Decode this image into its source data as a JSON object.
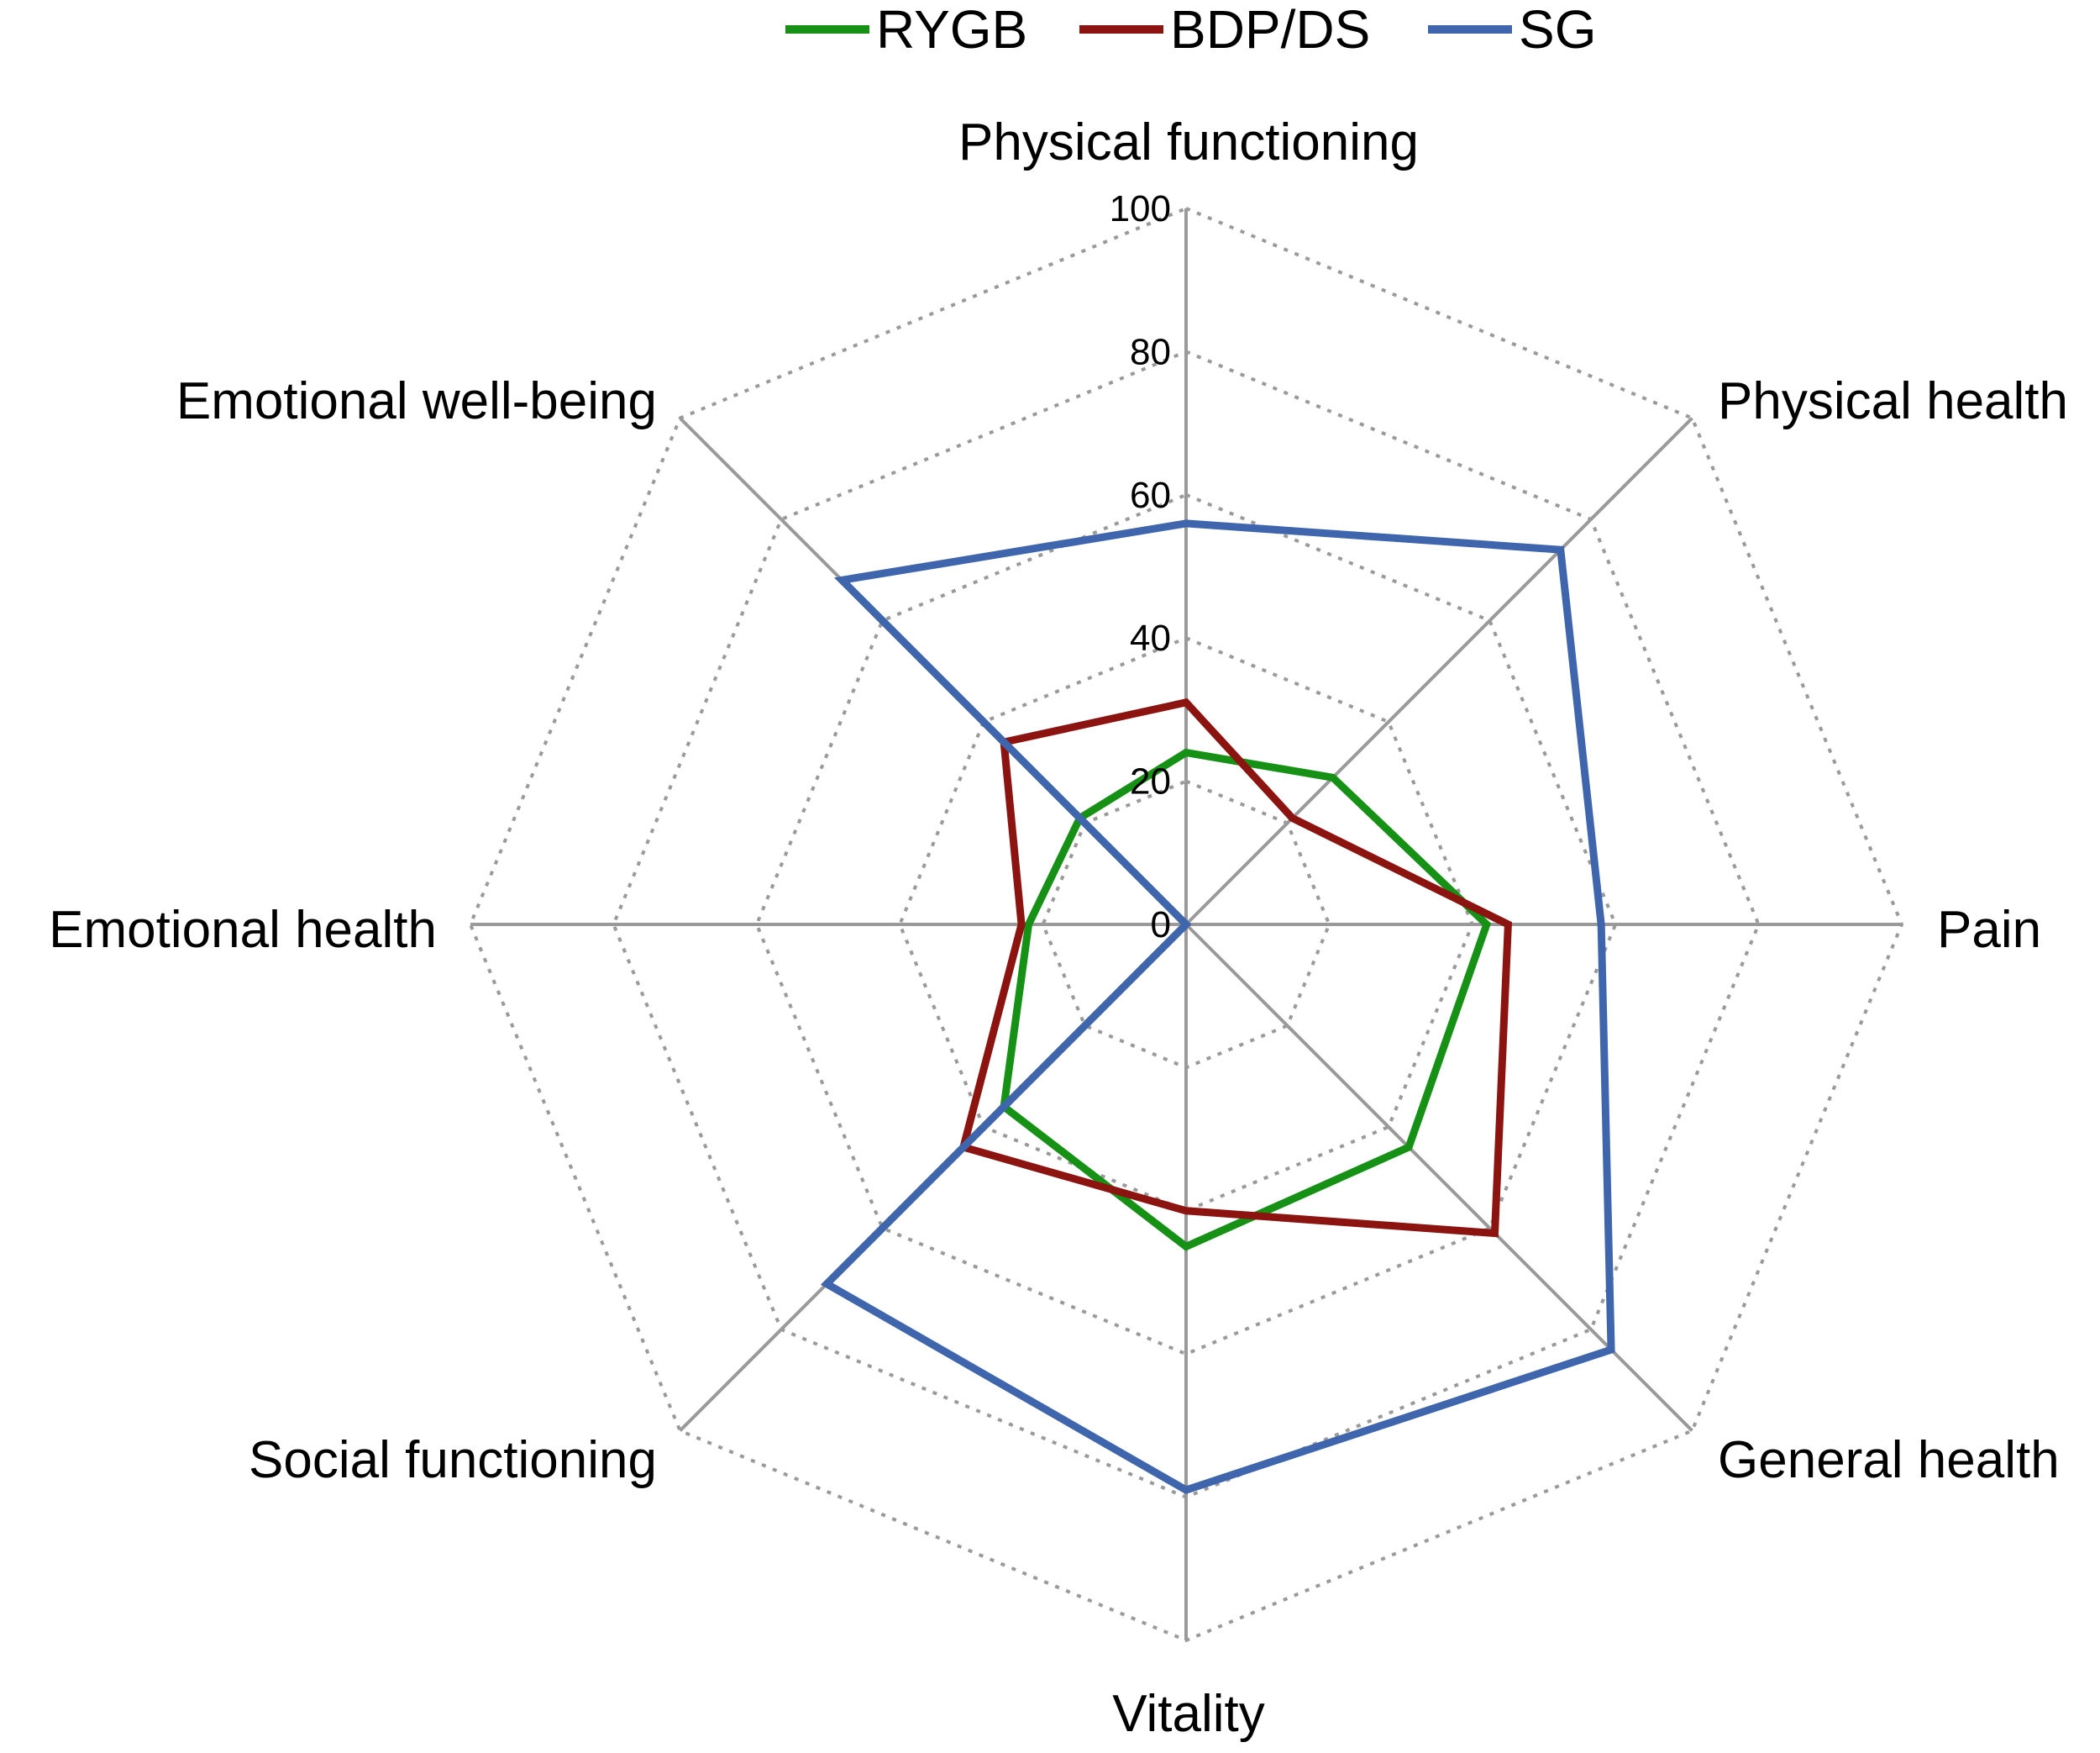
{
  "chart_data": {
    "type": "radar",
    "axes": [
      "Physical functioning",
      "Physical health",
      "Pain",
      "General health",
      "Vitality",
      "Social functioning",
      "Emotional health",
      "Emotional well-being"
    ],
    "radial_range": [
      0,
      100
    ],
    "radial_ticks": [
      "0",
      "20",
      "40",
      "60",
      "80",
      "100"
    ],
    "grid": true,
    "legend_position": "top-center",
    "series": [
      {
        "name": "RYGB",
        "color": "#169116",
        "values": [
          24,
          29,
          42,
          44,
          45,
          36,
          22,
          21
        ]
      },
      {
        "name": "BDP/DS",
        "color": "#8b1410",
        "values": [
          31,
          21,
          45,
          61,
          40,
          44,
          23,
          36
        ]
      },
      {
        "name": "SG",
        "color": "#3f66ad",
        "values": [
          56,
          74,
          58,
          84,
          79,
          71,
          0,
          68
        ]
      }
    ]
  }
}
